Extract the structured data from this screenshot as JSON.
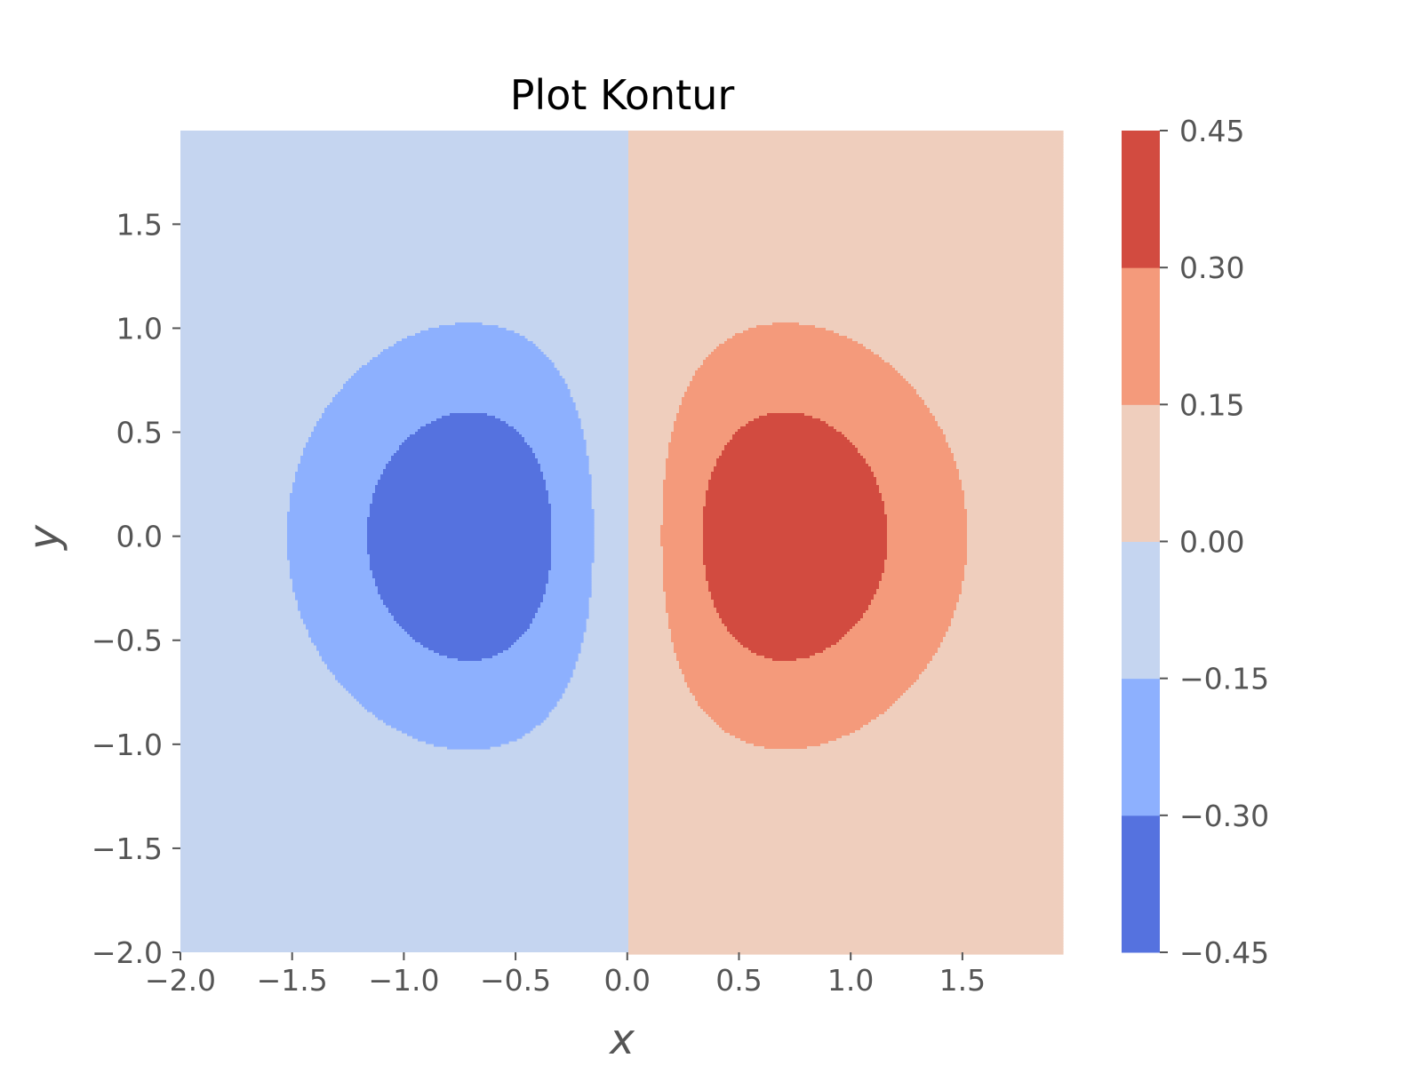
{
  "chart_data": {
    "type": "contour",
    "title": "Plot Kontur",
    "xlabel": "x",
    "ylabel": "y",
    "xlim": [
      -2.0,
      1.95
    ],
    "ylim": [
      -2.0,
      1.95
    ],
    "x_ticks": [
      -2.0,
      -1.5,
      -1.0,
      -0.5,
      0.0,
      0.5,
      1.0,
      1.5
    ],
    "x_tick_labels": [
      "−2.0",
      "−1.5",
      "−1.0",
      "−0.5",
      "0.0",
      "0.5",
      "1.0",
      "1.5"
    ],
    "y_ticks": [
      -2.0,
      -1.5,
      -1.0,
      -0.5,
      0.0,
      0.5,
      1.0,
      1.5
    ],
    "y_tick_labels": [
      "−2.0",
      "−1.5",
      "−1.0",
      "−0.5",
      "0.0",
      "0.5",
      "1.0",
      "1.5"
    ],
    "function": "x*exp(-(x^2+y^2))",
    "levels": [
      -0.45,
      -0.3,
      -0.15,
      0.0,
      0.15,
      0.3,
      0.45
    ],
    "level_labels": [
      "−0.45",
      "−0.30",
      "−0.15",
      "0.00",
      "0.15",
      "0.30",
      "0.45"
    ],
    "level_colors": [
      "#5572df",
      "#8db0fe",
      "#c5d5f0",
      "#efcebd",
      "#f49a7b",
      "#d24b40"
    ],
    "colormap": "coolwarm",
    "grid": false,
    "colorbar": true
  }
}
